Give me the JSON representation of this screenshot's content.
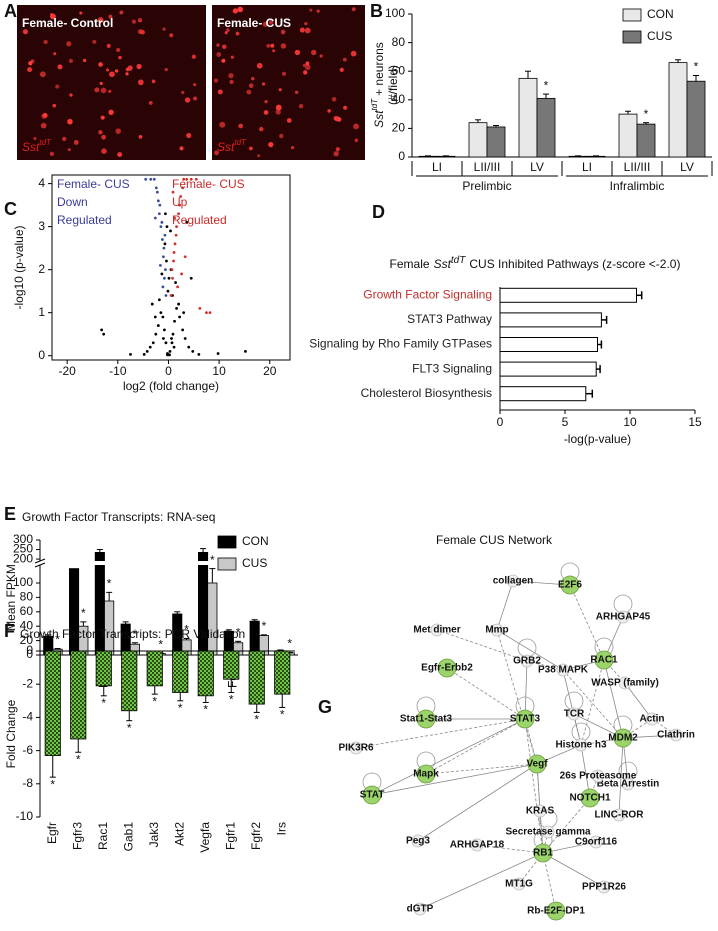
{
  "panel_letters": [
    "A",
    "B",
    "C",
    "D",
    "E",
    "F",
    "G"
  ],
  "images": [
    {
      "label": "Female- Control",
      "marker": {
        "gene": "Sst",
        "superscript": "tdT"
      }
    },
    {
      "label": "Female- CUS",
      "marker": {
        "gene": "Sst",
        "superscript": "tdT"
      }
    }
  ],
  "chart_data": [
    {
      "type": "bar",
      "ylabel": {
        "gene": "Sst",
        "superscript": "tdT",
        "text": "+ neurons",
        "unit": "(#/field)"
      },
      "categories": [
        "LI",
        "LII/III",
        "LV",
        "LI",
        "LII/III",
        "LV"
      ],
      "groups": [
        "Prelimbic",
        "Infralimbic"
      ],
      "series": [
        {
          "name": "CON",
          "color": "#e8e8e8",
          "values": [
            0.5,
            24,
            55,
            0.5,
            30,
            66
          ],
          "errors": [
            0.3,
            2,
            5,
            0.3,
            2,
            2
          ]
        },
        {
          "name": "CUS",
          "color": "#777777",
          "values": [
            0.5,
            21,
            41,
            0.5,
            23,
            53
          ],
          "errors": [
            0.3,
            1,
            3,
            0.3,
            1,
            4
          ],
          "significance": [
            null,
            null,
            "*",
            null,
            "*",
            "*"
          ]
        }
      ],
      "ylim": [
        0,
        100
      ],
      "yticks": [
        0,
        20,
        40,
        60,
        80,
        100
      ],
      "legend": "upper right"
    },
    {
      "type": "scatter",
      "xlabel": "log2 (fold change)",
      "ylabel": "-log10 (p-value)",
      "series": [
        {
          "color": "#000000",
          "x": [
            -0.2,
            0.3,
            -0.5,
            0.6,
            -0.8,
            0.9,
            -1.1,
            1.2,
            -1.5,
            1.6,
            -2.0,
            2.2,
            -2.5,
            2.8,
            -3.0,
            3.3,
            -3.6,
            4.0,
            -4.2,
            4.8,
            -0.1,
            0.1,
            -0.4,
            0.5,
            -0.7,
            0.8,
            -1.3,
            1.4,
            -1.8,
            2.0,
            -2.6,
            3.0,
            -0.3,
            0.4,
            -0.6,
            0.7,
            -1.0,
            1.1,
            -13.2,
            -12.8,
            15.2,
            -7.5,
            9.8,
            -4.8,
            6.0,
            -0.2,
            0.2,
            3.6,
            4.5,
            -3.2
          ],
          "y": [
            0.05,
            0.1,
            0.3,
            0.4,
            0.6,
            0.5,
            0.9,
            0.8,
            1.0,
            1.1,
            0.7,
            0.9,
            0.5,
            0.6,
            0.3,
            0.4,
            0.2,
            0.2,
            0.1,
            0.1,
            1.5,
            1.8,
            2.2,
            2.0,
            2.6,
            1.4,
            1.9,
            1.7,
            1.3,
            1.2,
            0.9,
            1.0,
            3.0,
            2.9,
            3.3,
            0.3,
            0.4,
            0.2,
            0.6,
            0.5,
            0.1,
            0.03,
            0.05,
            0.03,
            0.03,
            0.02,
            0.02,
            3.1,
            1.8,
            1.2
          ]
        },
        {
          "color": "#3b4ba0",
          "x": [
            -0.5,
            -0.8,
            -1.0,
            -1.2,
            -1.5,
            -1.8,
            -2.0,
            -2.4,
            -0.6,
            -0.9,
            -1.3,
            -1.7,
            -2.2,
            -2.8,
            -3.5,
            -4.5,
            -1.1,
            -1.6,
            -0.7,
            -2.6
          ],
          "y": [
            1.4,
            1.8,
            2.3,
            2.7,
            3.0,
            3.3,
            3.6,
            3.9,
            2.0,
            2.5,
            3.1,
            3.5,
            3.8,
            4.1,
            4.1,
            4.1,
            1.6,
            2.1,
            2.8,
            3.2
          ]
        },
        {
          "color": "#d0302c",
          "x": [
            0.5,
            0.8,
            1.0,
            1.3,
            1.6,
            2.0,
            2.4,
            3.0,
            0.7,
            1.1,
            1.5,
            2.2,
            2.8,
            3.6,
            4.5,
            5.5,
            6.2,
            1.8,
            2.6,
            3.3,
            1.2,
            7.5,
            8.2,
            0.9
          ],
          "y": [
            1.4,
            1.8,
            2.2,
            2.6,
            3.0,
            3.3,
            3.7,
            4.1,
            2.0,
            2.4,
            2.8,
            3.5,
            3.9,
            4.1,
            4.1,
            4.1,
            1.1,
            1.6,
            1.9,
            2.3,
            3.2,
            1.0,
            1.0,
            3.8
          ]
        }
      ],
      "xlim": [
        -23,
        24
      ],
      "ylim": [
        -0.1,
        4.2
      ],
      "xticks": [
        -20,
        -10,
        0,
        10,
        20
      ],
      "yticks": [
        0,
        1,
        2,
        3,
        4
      ],
      "annotations": [
        {
          "text": [
            "Female- CUS",
            "Down",
            "Regulated"
          ],
          "color": "#3b3b96"
        },
        {
          "text": [
            "Female- CUS",
            "Up",
            "Regulated"
          ],
          "color": "#cc2b2b"
        }
      ]
    },
    {
      "type": "barh",
      "title": {
        "before": "Female",
        "gene": "Sst",
        "superscript": "tdT",
        "after": "CUS Inhibited Pathways (z-score <-2.0)"
      },
      "categories": [
        "Growth Factor Signaling",
        "STAT3 Pathway",
        "Signaling by Rho Family GTPases",
        "FLT3 Signaling",
        "Cholesterol Biosynthesis"
      ],
      "label_colors": [
        "#c0302c",
        "#222222",
        "#222222",
        "#222222",
        "#222222"
      ],
      "values": [
        10.5,
        7.8,
        7.5,
        7.4,
        6.6
      ],
      "errors": [
        0.4,
        0.4,
        0.3,
        0.3,
        0.5
      ],
      "color": "#ffffff",
      "xlabel": "-log(p-value)",
      "xlim": [
        0,
        15
      ],
      "xticks": [
        0,
        5,
        10,
        15
      ]
    },
    {
      "type": "bar",
      "title": "Growth Factor Transcripts: RNA-seq",
      "ylabel": "Mean FPKM",
      "categories": [
        "Egfr",
        "Fgfr3",
        "Rac1",
        "Gab1",
        "Jak3",
        "Akt2",
        "Vegfa",
        "Fgfr1",
        "Fgfr2",
        "Irs"
      ],
      "series": [
        {
          "name": "CON",
          "color": "#000000",
          "values": [
            26,
            120,
            235,
            43,
            3,
            57,
            235,
            33,
            47,
            6
          ],
          "errors": [
            2,
            10,
            15,
            3,
            0.5,
            3,
            20,
            2,
            2,
            1
          ]
        },
        {
          "name": "CUS",
          "color": "#c8c8c8",
          "values": [
            8,
            40,
            75,
            15,
            2,
            21,
            100,
            17,
            27,
            3
          ],
          "errors": [
            1,
            6,
            12,
            2,
            0.5,
            2,
            20,
            2,
            1,
            0.5
          ],
          "significance": [
            "*",
            "*",
            "*",
            "*",
            "*",
            "*",
            "*",
            "*",
            "*",
            "*"
          ]
        }
      ],
      "ylim": [
        0,
        125
      ],
      "yticks": [
        0,
        20,
        40,
        60,
        80,
        100
      ],
      "ylim_upper": [
        190,
        300
      ],
      "yticks_upper": [
        200,
        250,
        300
      ],
      "axis_break": true,
      "legend": "upper right"
    },
    {
      "type": "bar",
      "title": "Growth Factor Transcripts: PCR Validation",
      "ylabel": "Fold Change",
      "categories": [
        "Egfr",
        "Fgfr3",
        "Rac1",
        "Gab1",
        "Jak3",
        "Akt2",
        "Vegfa",
        "Fgfr1",
        "Fgfr2",
        "Irs"
      ],
      "values": [
        -6.3,
        -5.3,
        -2.1,
        -3.6,
        -2.1,
        -2.5,
        -2.7,
        -1.7,
        -3.2,
        -2.6
      ],
      "errors": [
        1.3,
        0.8,
        0.6,
        0.6,
        0.5,
        0.5,
        0.4,
        0.8,
        0.5,
        0.8
      ],
      "significance": [
        "*",
        "*",
        "*",
        "*",
        "*",
        "*",
        "*",
        "*",
        "*",
        "*"
      ],
      "color": "#6cc644",
      "pattern": "checker",
      "ylim": [
        -10,
        0
      ],
      "yticks": [
        -10,
        -8,
        -6,
        -4,
        -2,
        0
      ]
    }
  ],
  "network": {
    "title": "Female CUS Network",
    "nodes": [
      {
        "label": "collagen",
        "highlighted": false
      },
      {
        "label": "E2F6",
        "highlighted": true
      },
      {
        "label": "Met dimer",
        "highlighted": false
      },
      {
        "label": "Mmp",
        "highlighted": false
      },
      {
        "label": "ARHGAP45",
        "highlighted": false
      },
      {
        "label": "GRB2",
        "highlighted": false
      },
      {
        "label": "P38 MAPK",
        "highlighted": false
      },
      {
        "label": "RAC1",
        "highlighted": true
      },
      {
        "label": "Egfr-Erbb2",
        "highlighted": true
      },
      {
        "label": "WASP (family)",
        "highlighted": false
      },
      {
        "label": "Actin",
        "highlighted": false
      },
      {
        "label": "Clathrin",
        "highlighted": false
      },
      {
        "label": "TCR",
        "highlighted": false
      },
      {
        "label": "STAT3",
        "highlighted": true
      },
      {
        "label": "Stat1-Stat3",
        "highlighted": true
      },
      {
        "label": "MDM2",
        "highlighted": true
      },
      {
        "label": "Beta Arrestin",
        "highlighted": false
      },
      {
        "label": "Histone h3",
        "highlighted": false
      },
      {
        "label": "Vegf",
        "highlighted": true
      },
      {
        "label": "PIK3R6",
        "highlighted": false
      },
      {
        "label": "Mapk",
        "highlighted": true
      },
      {
        "label": "26s Proteasome",
        "highlighted": false
      },
      {
        "label": "NOTCH1",
        "highlighted": true
      },
      {
        "label": "LINC-ROR",
        "highlighted": false
      },
      {
        "label": "STAT",
        "highlighted": true
      },
      {
        "label": "KRAS",
        "highlighted": false
      },
      {
        "label": "Secretase gamma",
        "highlighted": false
      },
      {
        "label": "C9orf116",
        "highlighted": false
      },
      {
        "label": "Peg3",
        "highlighted": false
      },
      {
        "label": "ARHGAP18",
        "highlighted": false
      },
      {
        "label": "RB1",
        "highlighted": true
      },
      {
        "label": "MT1G",
        "highlighted": false
      },
      {
        "label": "PPP1R26",
        "highlighted": false
      },
      {
        "label": "dGTP",
        "highlighted": false
      },
      {
        "label": "Rb-E2F-DP1",
        "highlighted": true
      }
    ]
  }
}
